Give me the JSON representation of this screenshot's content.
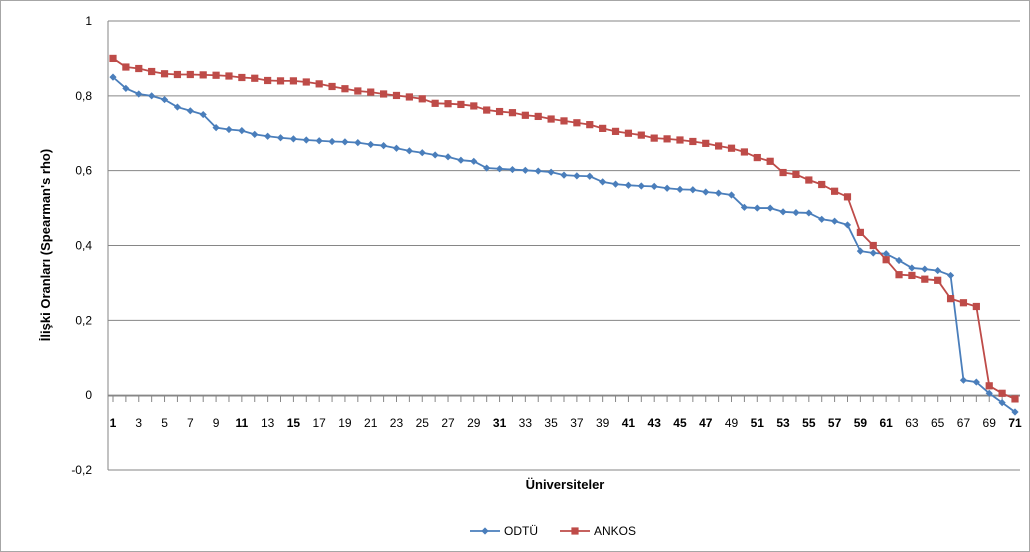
{
  "chart_data": {
    "type": "line",
    "title": "",
    "xlabel": "Üniversiteler",
    "ylabel": "İlişki Oranları (Spearman's rho)",
    "xlim": [
      1,
      71
    ],
    "ylim": [
      -0.2,
      1
    ],
    "yticks": [
      -0.2,
      0,
      0.2,
      0.4,
      0.6,
      0.8,
      1
    ],
    "ytick_labels": [
      "-0,2",
      "0",
      "0,2",
      "0,4",
      "0,6",
      "0,8",
      "1"
    ],
    "x_tick_labels": [
      "1",
      "3",
      "5",
      "7",
      "9",
      "11",
      "13",
      "15",
      "17",
      "19",
      "21",
      "23",
      "25",
      "27",
      "29",
      "31",
      "33",
      "35",
      "37",
      "39",
      "41",
      "43",
      "45",
      "47",
      "49",
      "51",
      "53",
      "55",
      "57",
      "59",
      "61",
      "63",
      "65",
      "67",
      "69",
      "71"
    ],
    "x_tick_labels_bold": [
      "1",
      "11",
      "15",
      "31",
      "41",
      "43",
      "45",
      "47",
      "51",
      "53",
      "55",
      "57",
      "59",
      "61",
      "71"
    ],
    "grid": "horizontal",
    "legend_position": "bottom",
    "series": [
      {
        "name": "ODTÜ",
        "color": "#4a7ebb",
        "marker": "diamond",
        "values": [
          0.85,
          0.82,
          0.805,
          0.8,
          0.79,
          0.77,
          0.76,
          0.75,
          0.715,
          0.71,
          0.707,
          0.697,
          0.692,
          0.688,
          0.685,
          0.682,
          0.68,
          0.678,
          0.677,
          0.675,
          0.67,
          0.667,
          0.66,
          0.653,
          0.648,
          0.642,
          0.637,
          0.628,
          0.625,
          0.607,
          0.605,
          0.603,
          0.601,
          0.599,
          0.596,
          0.588,
          0.586,
          0.585,
          0.57,
          0.564,
          0.561,
          0.559,
          0.558,
          0.553,
          0.55,
          0.549,
          0.543,
          0.54,
          0.535,
          0.502,
          0.5,
          0.5,
          0.49,
          0.488,
          0.487,
          0.47,
          0.465,
          0.455,
          0.385,
          0.38,
          0.378,
          0.36,
          0.34,
          0.337,
          0.333,
          0.32,
          0.04,
          0.035,
          0.005,
          -0.02,
          -0.045
        ]
      },
      {
        "name": "ANKOS",
        "color": "#be4b48",
        "marker": "square",
        "values": [
          0.9,
          0.877,
          0.873,
          0.865,
          0.859,
          0.857,
          0.857,
          0.856,
          0.855,
          0.853,
          0.849,
          0.847,
          0.841,
          0.84,
          0.84,
          0.837,
          0.832,
          0.825,
          0.819,
          0.813,
          0.81,
          0.805,
          0.801,
          0.797,
          0.792,
          0.78,
          0.779,
          0.777,
          0.773,
          0.762,
          0.758,
          0.755,
          0.748,
          0.745,
          0.738,
          0.733,
          0.728,
          0.723,
          0.713,
          0.705,
          0.7,
          0.695,
          0.687,
          0.685,
          0.682,
          0.678,
          0.673,
          0.666,
          0.66,
          0.65,
          0.635,
          0.625,
          0.595,
          0.59,
          0.575,
          0.563,
          0.545,
          0.53,
          0.435,
          0.4,
          0.362,
          0.322,
          0.32,
          0.31,
          0.307,
          0.258,
          0.247,
          0.237,
          0.025,
          0.005,
          -0.01
        ]
      }
    ]
  }
}
